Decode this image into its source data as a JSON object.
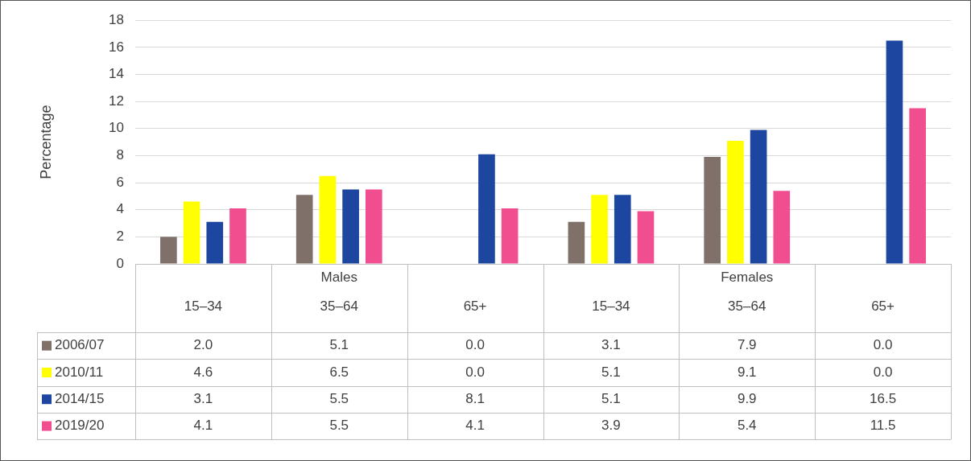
{
  "chart_data": {
    "type": "bar",
    "ylabel": "Percentage",
    "categories": [
      "15–34",
      "35–64",
      "65+",
      "15–34",
      "35–64",
      "65+"
    ],
    "annotations": [
      "Males",
      "Females"
    ],
    "series": [
      {
        "name": "2006/07",
        "color": "#7f7169",
        "values": [
          2.0,
          5.1,
          0.0,
          3.1,
          7.9,
          0.0
        ],
        "value_labels": [
          "2.0",
          "5.1",
          "0.0",
          "3.1",
          "7.9",
          "0.0"
        ]
      },
      {
        "name": "2010/11",
        "color": "#ffff00",
        "values": [
          4.6,
          6.5,
          0.0,
          5.1,
          9.1,
          0.0
        ],
        "value_labels": [
          "4.6",
          "6.5",
          "0.0",
          "5.1",
          "9.1",
          "0.0"
        ]
      },
      {
        "name": "2014/15",
        "color": "#1c46a0",
        "values": [
          3.1,
          5.5,
          8.1,
          5.1,
          9.9,
          16.5
        ],
        "value_labels": [
          "3.1",
          "5.5",
          "8.1",
          "5.1",
          "9.9",
          "16.5"
        ]
      },
      {
        "name": "2019/20",
        "color": "#f04e8f",
        "values": [
          4.1,
          5.5,
          4.1,
          3.9,
          5.4,
          11.5
        ],
        "value_labels": [
          "4.1",
          "5.5",
          "4.1",
          "3.9",
          "5.4",
          "11.5"
        ]
      }
    ],
    "ylim": [
      0,
      18
    ],
    "yticks": [
      0,
      2,
      4,
      6,
      8,
      10,
      12,
      14,
      16,
      18
    ],
    "grid": "y",
    "legend": "bottom"
  }
}
